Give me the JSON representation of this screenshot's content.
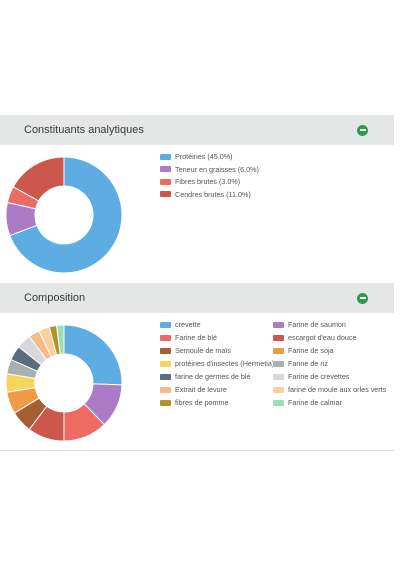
{
  "panels": {
    "analytic": {
      "title": "Constituants analytiques",
      "toggle_icon": "minus-circle-icon"
    },
    "composition": {
      "title": "Composition",
      "toggle_icon": "minus-circle-icon"
    }
  },
  "chart_data": [
    {
      "type": "pie",
      "chart": "analytic",
      "series": [
        {
          "name": "Protéines (45.0%)",
          "value": 45.0,
          "color": "#5dade2"
        },
        {
          "name": "Teneur en graisses (6.0%)",
          "value": 6.0,
          "color": "#ab7bc8"
        },
        {
          "name": "Fibres brutes (3.0%)",
          "value": 3.0,
          "color": "#ec6b62"
        },
        {
          "name": "Cendres brutes (11.0%)",
          "value": 11.0,
          "color": "#cc574d"
        }
      ]
    },
    {
      "type": "pie",
      "chart": "composition",
      "series": [
        {
          "name": "crevette",
          "value": 25,
          "color": "#5dade2"
        },
        {
          "name": "Farine de saumon",
          "value": 12,
          "color": "#ab7bc8"
        },
        {
          "name": "Farine de blé",
          "value": 12,
          "color": "#ec6b62"
        },
        {
          "name": "escargot d'eau douce",
          "value": 10,
          "color": "#cc574d"
        },
        {
          "name": "Semoule de maïs",
          "value": 6,
          "color": "#a65d33"
        },
        {
          "name": "Farine de soja",
          "value": 6,
          "color": "#ef9a45"
        },
        {
          "name": "protéines d'insectes (Hermetia)",
          "value": 5,
          "color": "#f6d55c"
        },
        {
          "name": "Farine de riz",
          "value": 4,
          "color": "#a7b0b3"
        },
        {
          "name": "farine de germes de blé",
          "value": 4,
          "color": "#5b6b80"
        },
        {
          "name": "Farine de crevettes",
          "value": 4,
          "color": "#d6d8d9"
        },
        {
          "name": "Extrait de levure",
          "value": 3,
          "color": "#f4bc8a"
        },
        {
          "name": "farine de moule aux orles verts",
          "value": 3,
          "color": "#fad19c"
        },
        {
          "name": "fibres de pomme",
          "value": 2,
          "color": "#b5912c"
        },
        {
          "name": "Farine de calmar",
          "value": 2,
          "color": "#98dfb4"
        }
      ]
    }
  ]
}
